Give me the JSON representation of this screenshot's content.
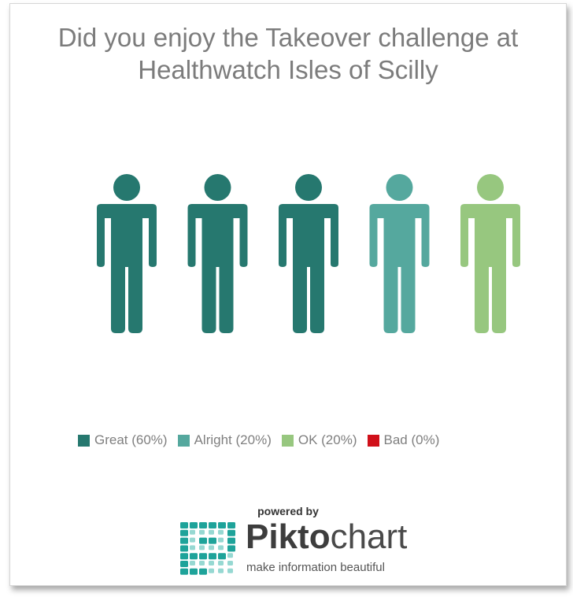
{
  "chart_data": {
    "type": "pictograph",
    "title": "Did you enjoy the Takeover challenge at Healthwatch Isles of Scilly",
    "categories": [
      "Great",
      "Alright",
      "OK",
      "Bad"
    ],
    "values": [
      60,
      20,
      20,
      0
    ],
    "unit": "%",
    "icons_total": 5,
    "icon": "person-icon",
    "legend": [
      {
        "label": "Great (60%)",
        "color": "#26786f"
      },
      {
        "label": "Alright (20%)",
        "color": "#55a89e"
      },
      {
        "label": "OK (20%)",
        "color": "#97c77f"
      },
      {
        "label": "Bad (0%)",
        "color": "#d0101a"
      }
    ],
    "legend_position": "bottom"
  },
  "branding": {
    "powered_by": "powered by",
    "brand_bold": "Pikto",
    "brand_light": "chart",
    "tagline": "make information beautiful",
    "mark_colors": [
      "#1ea39a",
      "#3fb8ad"
    ]
  }
}
